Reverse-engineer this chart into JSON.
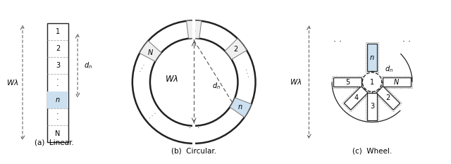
{
  "fig_width": 6.4,
  "fig_height": 2.33,
  "dpi": 100,
  "bg_color": "#ffffff",
  "port_color": "#cce0f0",
  "port_edge_color": "#777777",
  "line_color": "#222222",
  "dashed_color": "#555555",
  "caption_a": "(a)  Linear.",
  "caption_b": "(b)  Circular.",
  "caption_c": "(c)  Wheel."
}
